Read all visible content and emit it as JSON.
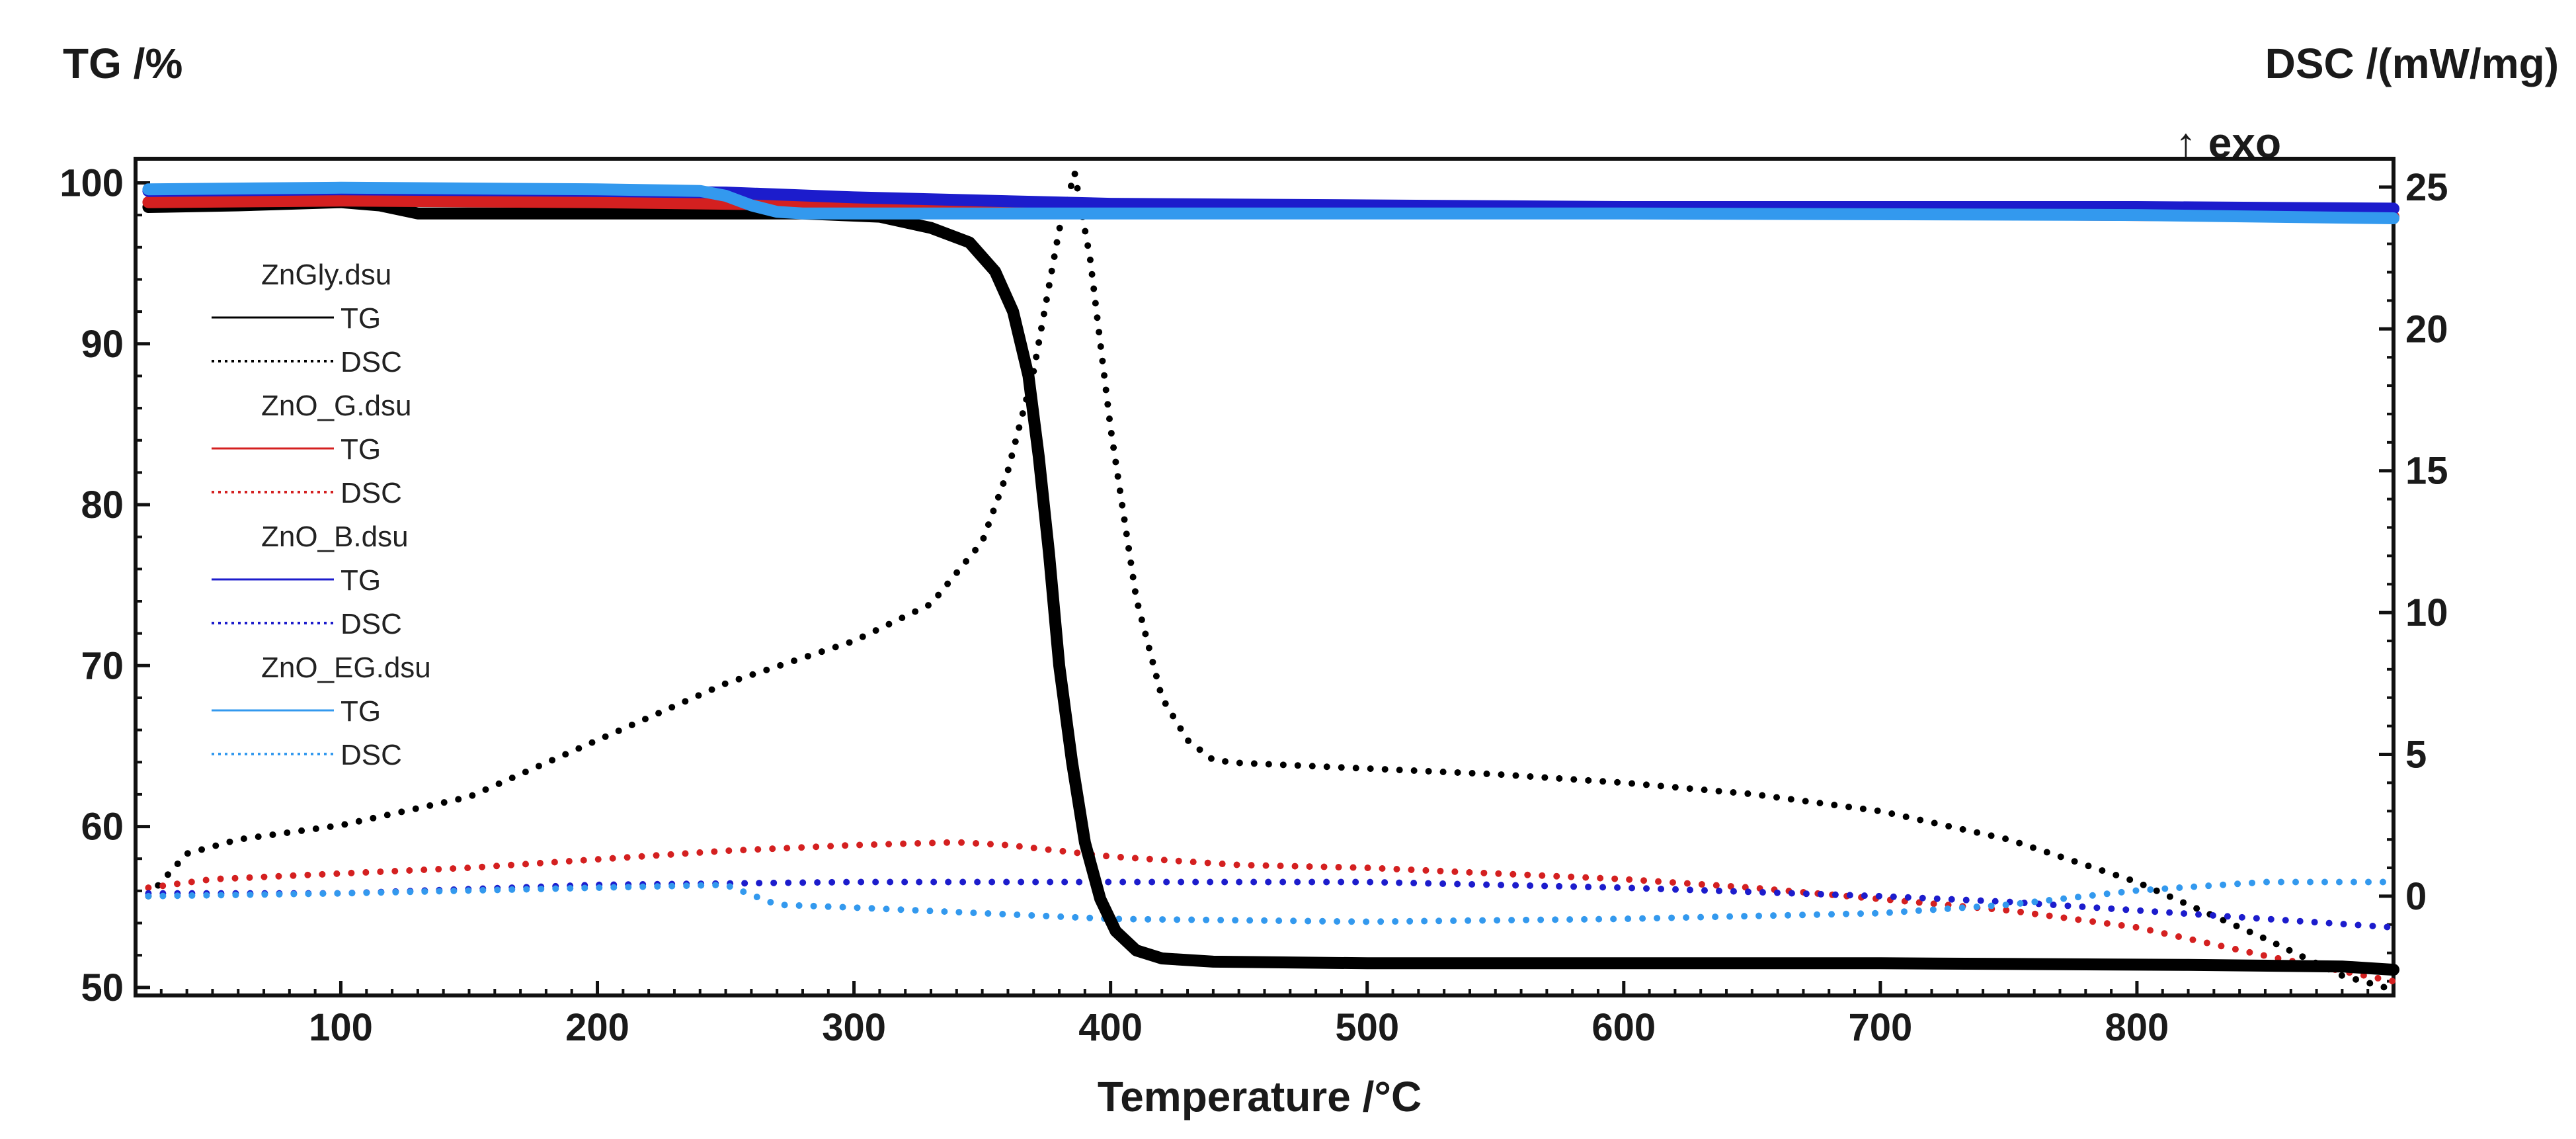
{
  "chart_data": {
    "type": "line",
    "xlabel": "Temperature /°C",
    "ylabel_left": "TG /%",
    "ylabel_right": "DSC /(mW/mg)",
    "annotation": "↑ exo",
    "xlim": [
      20,
      900
    ],
    "ylim_left": [
      49.5,
      101.5
    ],
    "ylim_right": [
      -3.5,
      26
    ],
    "x_ticks": [
      100,
      200,
      300,
      400,
      500,
      600,
      700,
      800
    ],
    "y_left_ticks": [
      50,
      60,
      70,
      80,
      90,
      100
    ],
    "y_right_ticks": [
      0,
      5,
      10,
      15,
      20,
      25
    ],
    "grid": false,
    "legend_position": "upper-left",
    "samples": [
      {
        "name": "ZnGly.dsu",
        "color": "#000000",
        "tg_label": "TG",
        "dsc_label": "DSC",
        "tg": {
          "x": [
            25,
            60,
            100,
            115,
            130,
            200,
            280,
            310,
            330,
            345,
            355,
            362,
            368,
            372,
            376,
            380,
            385,
            390,
            396,
            402,
            410,
            420,
            440,
            500,
            700,
            820,
            880,
            900
          ],
          "y": [
            98.5,
            98.6,
            98.8,
            98.6,
            98.1,
            98.1,
            98.1,
            97.9,
            97.2,
            96.3,
            94.5,
            92.0,
            88.0,
            83.0,
            77.0,
            70.0,
            64.0,
            59.0,
            55.5,
            53.5,
            52.3,
            51.8,
            51.6,
            51.5,
            51.5,
            51.4,
            51.3,
            51.1
          ]
        },
        "dsc": {
          "x": [
            25,
            40,
            60,
            100,
            150,
            200,
            250,
            300,
            330,
            350,
            360,
            370,
            380,
            386,
            392,
            400,
            410,
            420,
            430,
            440,
            450,
            500,
            550,
            600,
            650,
            700,
            750,
            800,
            850,
            880,
            900
          ],
          "y": [
            0,
            1.5,
            2.0,
            2.5,
            3.5,
            5.5,
            7.5,
            9.0,
            10.3,
            12.5,
            15.0,
            18.5,
            23.5,
            25.5,
            22.5,
            16.5,
            10.5,
            7.0,
            5.5,
            4.8,
            4.7,
            4.5,
            4.3,
            4.0,
            3.6,
            3.0,
            2.0,
            0.5,
            -1.5,
            -2.8,
            -3.3
          ]
        }
      },
      {
        "name": "ZnO_G.dsu",
        "color": "#d42020",
        "tg_label": "TG",
        "dsc_label": "DSC",
        "tg": {
          "x": [
            25,
            100,
            200,
            300,
            400,
            500,
            600,
            700,
            800,
            900
          ],
          "y": [
            98.8,
            98.9,
            98.8,
            98.6,
            98.4,
            98.3,
            98.2,
            98.1,
            98.0,
            97.9
          ]
        },
        "dsc": {
          "x": [
            25,
            50,
            100,
            150,
            200,
            250,
            300,
            340,
            360,
            400,
            450,
            500,
            550,
            600,
            650,
            700,
            750,
            800,
            850,
            900
          ],
          "y": [
            0.3,
            0.6,
            0.8,
            1.0,
            1.3,
            1.6,
            1.8,
            1.9,
            1.8,
            1.4,
            1.1,
            1.0,
            0.8,
            0.6,
            0.3,
            -0.1,
            -0.5,
            -1.1,
            -2.1,
            -3.0
          ]
        }
      },
      {
        "name": "ZnO_B.dsu",
        "color": "#1c1ccc",
        "tg_label": "TG",
        "dsc_label": "DSC",
        "tg": {
          "x": [
            25,
            100,
            200,
            250,
            300,
            400,
            500,
            600,
            700,
            800,
            900
          ],
          "y": [
            99.5,
            99.6,
            99.5,
            99.4,
            99.1,
            98.7,
            98.6,
            98.5,
            98.5,
            98.5,
            98.4
          ]
        },
        "dsc": {
          "x": [
            25,
            100,
            200,
            300,
            400,
            500,
            600,
            700,
            750,
            800,
            850,
            900
          ],
          "y": [
            0.1,
            0.1,
            0.4,
            0.5,
            0.5,
            0.5,
            0.3,
            0.0,
            -0.2,
            -0.5,
            -0.8,
            -1.1
          ]
        }
      },
      {
        "name": "ZnO_EG.dsu",
        "color": "#3399ee",
        "tg_label": "TG",
        "dsc_label": "DSC",
        "tg": {
          "x": [
            25,
            100,
            200,
            240,
            250,
            260,
            270,
            280,
            400,
            600,
            800,
            900
          ],
          "y": [
            99.6,
            99.7,
            99.6,
            99.5,
            99.2,
            98.6,
            98.2,
            98.1,
            98.1,
            98.1,
            98.0,
            97.8
          ]
        },
        "dsc": {
          "x": [
            25,
            100,
            200,
            250,
            270,
            300,
            400,
            500,
            600,
            700,
            750,
            800,
            850,
            900
          ],
          "y": [
            0.0,
            0.1,
            0.3,
            0.4,
            -0.3,
            -0.4,
            -0.8,
            -0.9,
            -0.8,
            -0.6,
            -0.3,
            0.2,
            0.5,
            0.5
          ]
        }
      }
    ]
  }
}
